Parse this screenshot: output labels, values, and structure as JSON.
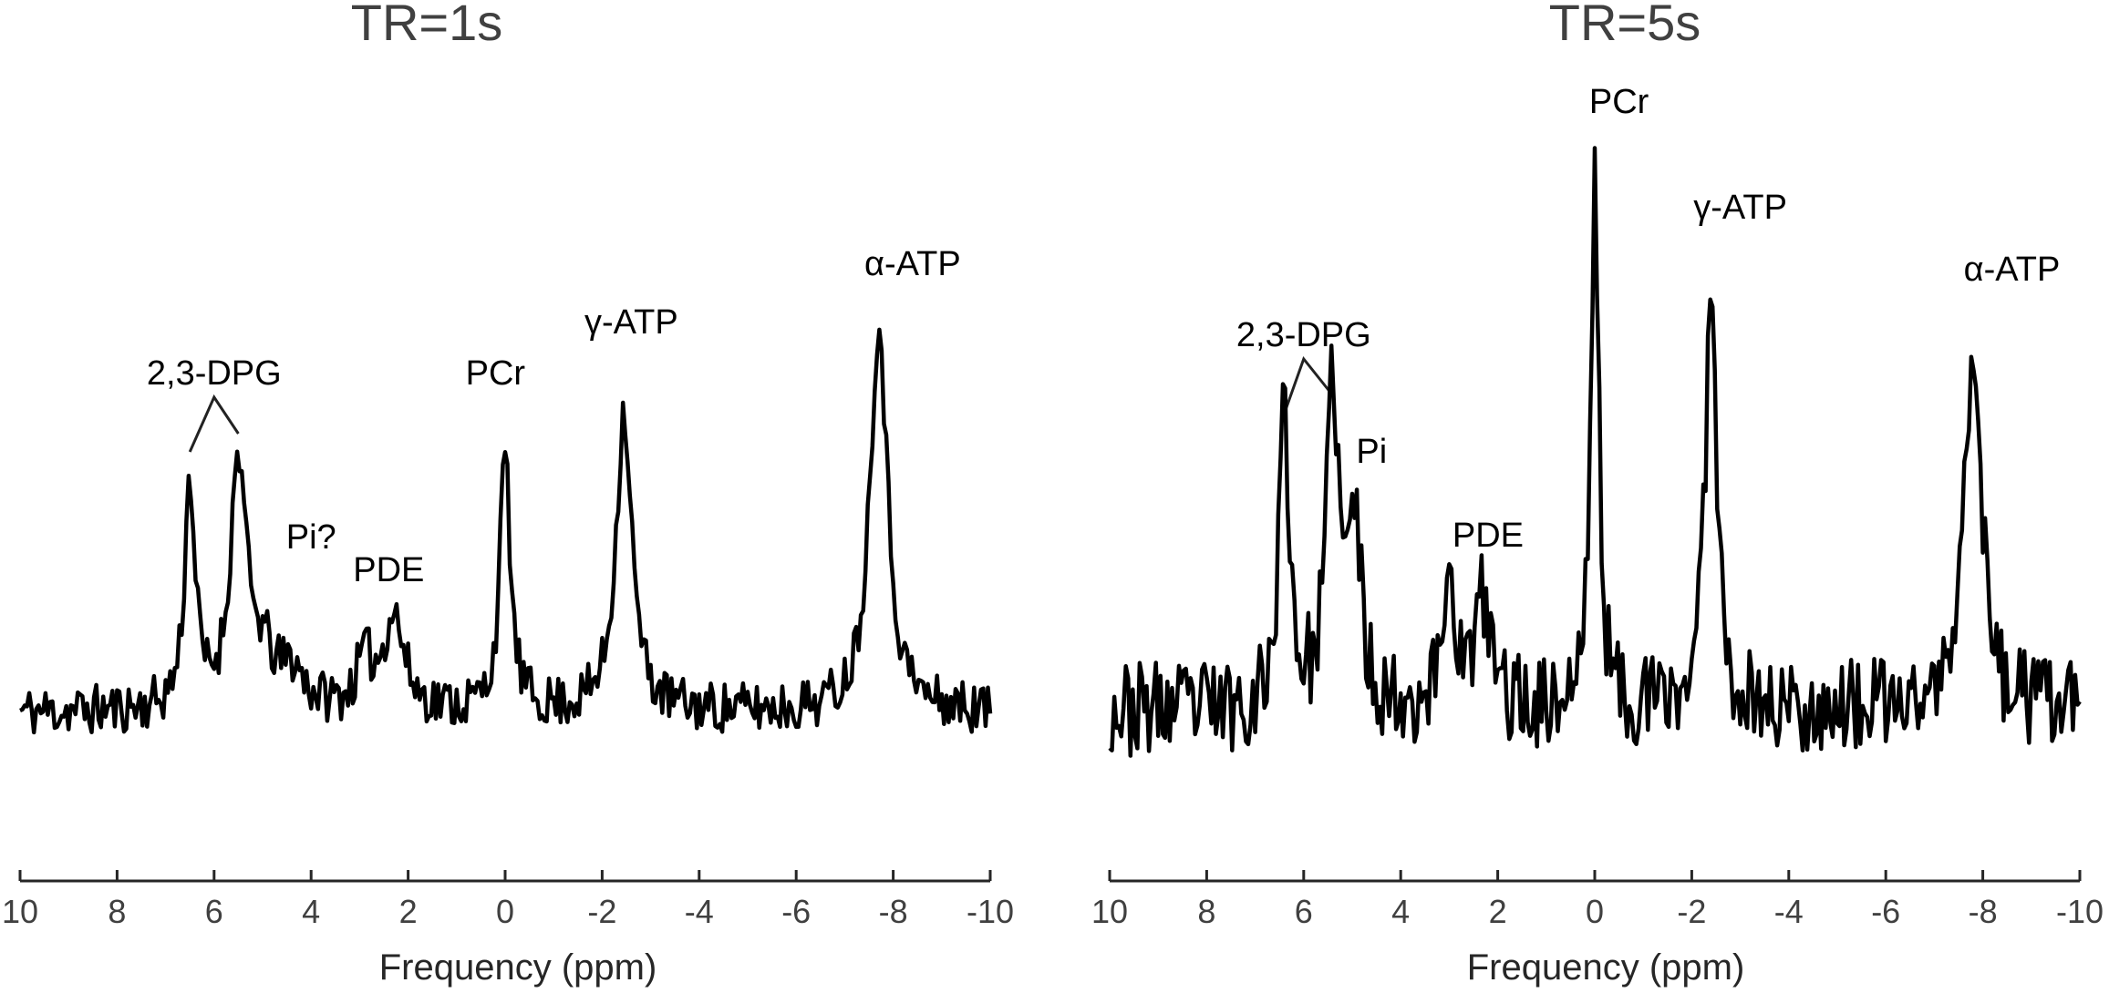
{
  "chart_data": [
    {
      "type": "line",
      "title": "TR=1s",
      "xlabel": "Frequency (ppm)",
      "xlim": [
        10,
        -10
      ],
      "x_ticks": [
        10,
        8,
        6,
        4,
        2,
        0,
        -2,
        -4,
        -6,
        -8,
        -10
      ],
      "tick_labels": [
        "10",
        "8",
        "6",
        "4",
        "2",
        "0",
        "-2",
        "-4",
        "-6",
        "-8",
        "-10"
      ],
      "baseline": 0.0,
      "noise": 0.07,
      "seed": 11,
      "peaks": [
        {
          "center": 6.5,
          "height": 0.62,
          "width": 0.13
        },
        {
          "center": 5.5,
          "height": 0.68,
          "width": 0.2
        },
        {
          "center": 5.0,
          "height": 0.12,
          "width": 0.25
        },
        {
          "center": 4.4,
          "height": 0.1,
          "width": 0.3
        },
        {
          "center": 2.3,
          "height": 0.26,
          "width": 0.25
        },
        {
          "center": 2.9,
          "height": 0.12,
          "width": 0.2
        },
        {
          "center": 0.0,
          "height": 0.7,
          "width": 0.13
        },
        {
          "center": -2.45,
          "height": 0.82,
          "width": 0.2
        },
        {
          "center": -7.7,
          "height": 1.07,
          "width": 0.22
        }
      ],
      "annotations": [
        {
          "text": "2,3-DPG",
          "x": 6.0,
          "y": 0.9,
          "leaders": [
            6.5,
            5.5
          ]
        },
        {
          "text": "Pi?",
          "x": 4.0,
          "y": 0.45
        },
        {
          "text": "PDE",
          "x": 2.4,
          "y": 0.36
        },
        {
          "text": "PCr",
          "x": 0.2,
          "y": 0.9
        },
        {
          "text": "γ-ATP",
          "x": -2.6,
          "y": 1.04
        },
        {
          "text": "α-ATP",
          "x": -8.4,
          "y": 1.2
        }
      ]
    },
    {
      "type": "line",
      "title": "TR=5s",
      "xlabel": "Frequency (ppm)",
      "xlim": [
        10,
        -10
      ],
      "x_ticks": [
        10,
        8,
        6,
        4,
        2,
        0,
        -2,
        -4,
        -6,
        -8,
        -10
      ],
      "tick_labels": [
        "10",
        "8",
        "6",
        "4",
        "2",
        "0",
        "-2",
        "-4",
        "-6",
        "-8",
        "-10"
      ],
      "baseline": 0.0,
      "noise": 0.13,
      "seed": 23,
      "peaks": [
        {
          "center": 6.4,
          "height": 0.82,
          "width": 0.13
        },
        {
          "center": 5.4,
          "height": 0.88,
          "width": 0.15
        },
        {
          "center": 4.95,
          "height": 0.5,
          "width": 0.15
        },
        {
          "center": 3.0,
          "height": 0.38,
          "width": 0.15
        },
        {
          "center": 2.3,
          "height": 0.28,
          "width": 0.2
        },
        {
          "center": 0.0,
          "height": 1.45,
          "width": 0.1
        },
        {
          "center": -2.4,
          "height": 1.2,
          "width": 0.14
        },
        {
          "center": -7.8,
          "height": 1.05,
          "width": 0.2
        }
      ],
      "annotations": [
        {
          "text": "2,3-DPG",
          "x": 6.0,
          "y": 1.0,
          "leaders": [
            6.4,
            5.4
          ]
        },
        {
          "text": "Pi",
          "x": 4.6,
          "y": 0.68
        },
        {
          "text": "PDE",
          "x": 2.2,
          "y": 0.45
        },
        {
          "text": "PCr",
          "x": -0.5,
          "y": 1.64
        },
        {
          "text": "γ-ATP",
          "x": -3.0,
          "y": 1.35
        },
        {
          "text": "α-ATP",
          "x": -8.6,
          "y": 1.18
        }
      ]
    }
  ]
}
